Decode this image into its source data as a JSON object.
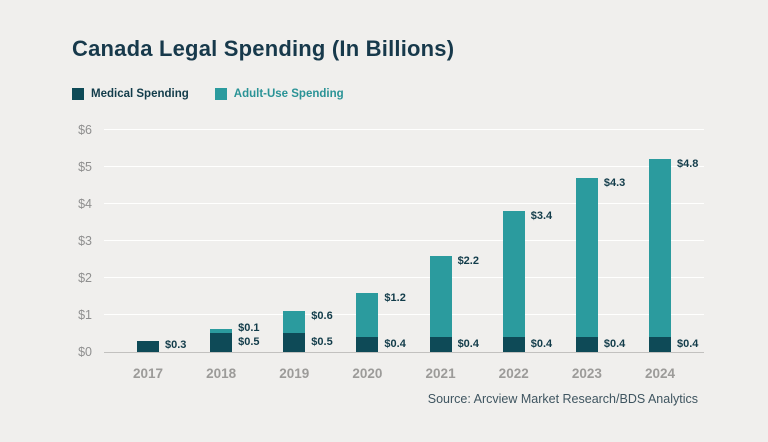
{
  "chart": {
    "title": "Canada Legal Spending (In Billions)",
    "source": "Source: Arcview Market Research/BDS Analytics",
    "legend": {
      "medical": "Medical Spending",
      "adult": "Adult-Use Spending"
    }
  },
  "chart_data": {
    "type": "bar",
    "stacked": true,
    "title": "Canada Legal Spending (In Billions)",
    "categories": [
      "2017",
      "2018",
      "2019",
      "2020",
      "2021",
      "2022",
      "2023",
      "2024"
    ],
    "series": [
      {
        "name": "Medical Spending",
        "color": "#0e4a57",
        "values": [
          0.3,
          0.5,
          0.5,
          0.4,
          0.4,
          0.4,
          0.4,
          0.4
        ],
        "labels": [
          "$0.3",
          "$0.5",
          "$0.5",
          "$0.4",
          "$0.4",
          "$0.4",
          "$0.4",
          "$0.4"
        ]
      },
      {
        "name": "Adult-Use Spending",
        "color": "#2b9b9e",
        "values": [
          0,
          0.1,
          0.6,
          1.2,
          2.2,
          3.4,
          4.3,
          4.8
        ],
        "labels": [
          "",
          "$0.1",
          "$0.6",
          "$1.2",
          "$2.2",
          "$3.4",
          "$4.3",
          "$4.8"
        ]
      }
    ],
    "xlabel": "",
    "ylabel": "",
    "ylim": [
      0,
      6
    ],
    "yticks": [
      "$0",
      "$1",
      "$2",
      "$3",
      "$4",
      "$5",
      "$6"
    ],
    "grid": true,
    "legend_position": "top-left",
    "source": "Source: Arcview Market Research/BDS Analytics"
  }
}
